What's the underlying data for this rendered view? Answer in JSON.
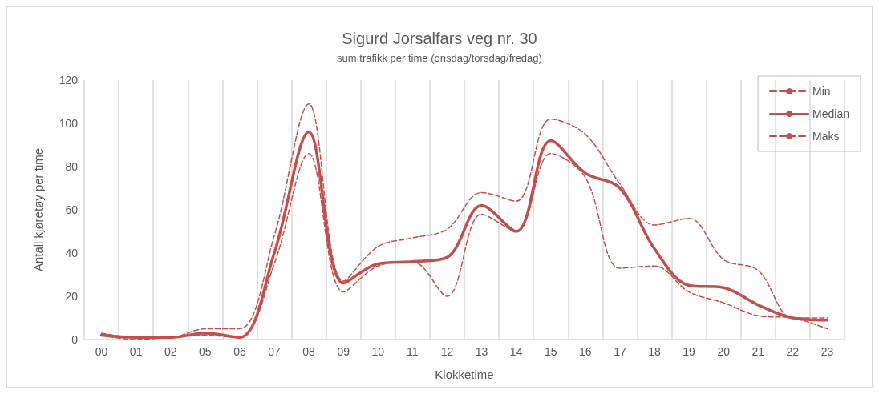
{
  "chart_data": {
    "type": "line",
    "title": "Sigurd Jorsalfars veg nr. 30",
    "subtitle": "sum trafikk per time (onsdag/torsdag/fredag)",
    "xlabel": "Klokketime",
    "ylabel": "Antall kjøretøy per time",
    "categories": [
      "00",
      "01",
      "02",
      "05",
      "06",
      "07",
      "08",
      "09",
      "10",
      "11",
      "12",
      "13",
      "14",
      "15",
      "16",
      "17",
      "18",
      "19",
      "20",
      "21",
      "22",
      "23"
    ],
    "series": [
      {
        "name": "Min",
        "color": "#c0504d",
        "line_style": "dashed",
        "values": [
          2,
          0,
          1,
          2,
          1,
          35,
          86,
          22,
          34,
          36,
          20,
          58,
          50,
          86,
          75,
          33,
          34,
          22,
          17,
          11,
          10,
          5
        ]
      },
      {
        "name": "Median",
        "color": "#c0504d",
        "line_style": "solid",
        "values": [
          2,
          1,
          1,
          3,
          1,
          40,
          96,
          26,
          35,
          36,
          38,
          62,
          50,
          92,
          77,
          70,
          42,
          25,
          24,
          16,
          10,
          9
        ]
      },
      {
        "name": "Maks",
        "color": "#c0504d",
        "line_style": "dashed",
        "values": [
          3,
          1,
          1,
          5,
          5,
          48,
          109,
          27,
          43,
          47,
          51,
          68,
          64,
          102,
          95,
          72,
          53,
          56,
          37,
          32,
          10,
          10
        ]
      }
    ],
    "ylim": [
      0,
      120
    ],
    "yticks": [
      0,
      20,
      40,
      60,
      80,
      100,
      120
    ],
    "grid": "x",
    "legend": "top right",
    "marker": "none"
  }
}
